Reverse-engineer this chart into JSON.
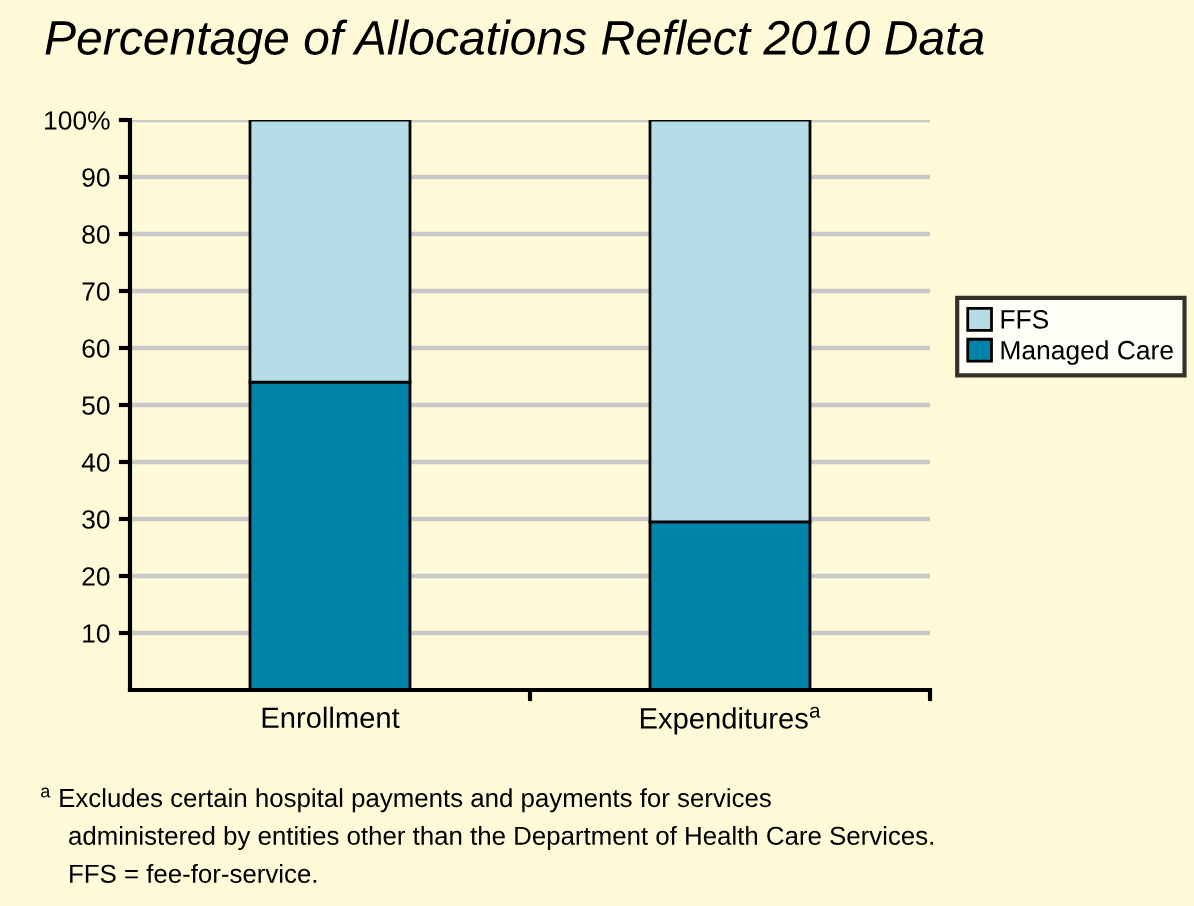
{
  "chart_data": {
    "type": "bar",
    "title": "Percentage of Allocations Reflect 2010 Data",
    "categories": [
      "Enrollment",
      "Expenditures$^{a}$"
    ],
    "series": [
      {
        "name": "Managed Care",
        "color": "#0083a9",
        "values": [
          54,
          29.5
        ]
      },
      {
        "name": "FFS",
        "color": "#b5dbe6",
        "values": [
          46,
          70.5
        ]
      }
    ],
    "stacked": true,
    "ylim": [
      0,
      100
    ],
    "yticks": [
      10,
      20,
      30,
      40,
      50,
      60,
      70,
      80,
      90,
      {
        "value": 100,
        "label": "100%"
      }
    ],
    "grid": "y",
    "legend": "right",
    "annotations": [
      "$^{a}$ Excludes certain hospital payments and payments for services",
      "administered by entities other than the Department of Health Care Services.",
      "FFS = fee-for-service."
    ]
  }
}
